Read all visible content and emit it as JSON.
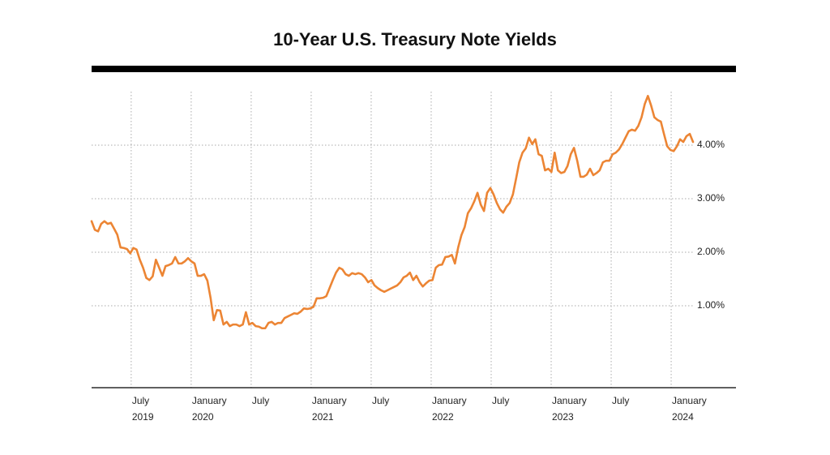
{
  "chart_data": {
    "type": "line",
    "title": "10-Year U.S. Treasury Note Yields",
    "x": [
      2019.17,
      2019.197,
      2019.224,
      2019.25,
      2019.277,
      2019.304,
      2019.331,
      2019.358,
      2019.384,
      2019.411,
      2019.438,
      2019.465,
      2019.492,
      2019.518,
      2019.545,
      2019.572,
      2019.599,
      2019.626,
      2019.652,
      2019.679,
      2019.706,
      2019.733,
      2019.76,
      2019.786,
      2019.813,
      2019.84,
      2019.867,
      2019.894,
      2019.92,
      2019.947,
      2019.974,
      2020.001,
      2020.028,
      2020.054,
      2020.081,
      2020.108,
      2020.135,
      2020.162,
      2020.188,
      2020.215,
      2020.242,
      2020.269,
      2020.296,
      2020.322,
      2020.349,
      2020.376,
      2020.403,
      2020.43,
      2020.456,
      2020.483,
      2020.51,
      2020.537,
      2020.564,
      2020.59,
      2020.617,
      2020.644,
      2020.671,
      2020.698,
      2020.724,
      2020.751,
      2020.778,
      2020.805,
      2020.832,
      2020.858,
      2020.885,
      2020.912,
      2020.939,
      2020.966,
      2020.992,
      2021.019,
      2021.046,
      2021.073,
      2021.1,
      2021.126,
      2021.153,
      2021.18,
      2021.207,
      2021.234,
      2021.26,
      2021.287,
      2021.314,
      2021.341,
      2021.368,
      2021.394,
      2021.421,
      2021.448,
      2021.475,
      2021.502,
      2021.528,
      2021.555,
      2021.582,
      2021.609,
      2021.636,
      2021.662,
      2021.689,
      2021.716,
      2021.743,
      2021.77,
      2021.796,
      2021.823,
      2021.85,
      2021.877,
      2021.904,
      2021.93,
      2021.957,
      2021.984,
      2022.011,
      2022.038,
      2022.064,
      2022.091,
      2022.118,
      2022.145,
      2022.172,
      2022.198,
      2022.225,
      2022.252,
      2022.279,
      2022.306,
      2022.332,
      2022.359,
      2022.386,
      2022.413,
      2022.44,
      2022.466,
      2022.493,
      2022.52,
      2022.547,
      2022.574,
      2022.6,
      2022.627,
      2022.654,
      2022.681,
      2022.708,
      2022.734,
      2022.761,
      2022.788,
      2022.815,
      2022.842,
      2022.868,
      2022.895,
      2022.922,
      2022.949,
      2022.976,
      2023.002,
      2023.029,
      2023.056,
      2023.083,
      2023.11,
      2023.136,
      2023.163,
      2023.19,
      2023.217,
      2023.244,
      2023.27,
      2023.297,
      2023.324,
      2023.351,
      2023.378,
      2023.404,
      2023.431,
      2023.458,
      2023.485,
      2023.512,
      2023.538,
      2023.565,
      2023.592,
      2023.619,
      2023.646,
      2023.672,
      2023.699,
      2023.726,
      2023.753,
      2023.78,
      2023.806,
      2023.833,
      2023.86,
      2023.887,
      2023.914,
      2023.94,
      2023.967,
      2023.994,
      2024.021,
      2024.048,
      2024.074,
      2024.101,
      2024.128,
      2024.155,
      2024.182
    ],
    "series": [
      {
        "color": "#ec8534",
        "values": [
          2.58,
          2.42,
          2.39,
          2.53,
          2.58,
          2.53,
          2.55,
          2.44,
          2.33,
          2.09,
          2.08,
          2.06,
          1.98,
          2.08,
          2.05,
          1.86,
          1.71,
          1.52,
          1.48,
          1.55,
          1.86,
          1.71,
          1.56,
          1.74,
          1.76,
          1.79,
          1.91,
          1.79,
          1.79,
          1.83,
          1.89,
          1.83,
          1.79,
          1.56,
          1.56,
          1.59,
          1.47,
          1.14,
          0.73,
          0.92,
          0.91,
          0.65,
          0.7,
          0.62,
          0.65,
          0.65,
          0.62,
          0.65,
          0.88,
          0.65,
          0.68,
          0.62,
          0.61,
          0.58,
          0.58,
          0.68,
          0.7,
          0.65,
          0.68,
          0.68,
          0.77,
          0.8,
          0.83,
          0.86,
          0.85,
          0.89,
          0.95,
          0.94,
          0.95,
          0.98,
          1.14,
          1.14,
          1.15,
          1.18,
          1.33,
          1.48,
          1.62,
          1.71,
          1.68,
          1.59,
          1.56,
          1.61,
          1.59,
          1.61,
          1.59,
          1.53,
          1.44,
          1.48,
          1.38,
          1.33,
          1.29,
          1.26,
          1.29,
          1.32,
          1.35,
          1.38,
          1.44,
          1.53,
          1.56,
          1.62,
          1.48,
          1.56,
          1.44,
          1.36,
          1.42,
          1.47,
          1.48,
          1.71,
          1.76,
          1.77,
          1.91,
          1.92,
          1.95,
          1.79,
          2.09,
          2.32,
          2.47,
          2.73,
          2.82,
          2.95,
          3.11,
          2.89,
          2.77,
          3.11,
          3.2,
          3.08,
          2.92,
          2.8,
          2.74,
          2.85,
          2.92,
          3.08,
          3.38,
          3.68,
          3.86,
          3.94,
          4.14,
          4.02,
          4.11,
          3.83,
          3.8,
          3.53,
          3.56,
          3.5,
          3.86,
          3.53,
          3.48,
          3.5,
          3.61,
          3.83,
          3.95,
          3.71,
          3.41,
          3.41,
          3.45,
          3.56,
          3.44,
          3.48,
          3.53,
          3.68,
          3.71,
          3.71,
          3.83,
          3.86,
          3.92,
          4.02,
          4.14,
          4.26,
          4.29,
          4.27,
          4.36,
          4.52,
          4.77,
          4.92,
          4.74,
          4.52,
          4.47,
          4.44,
          4.21,
          3.98,
          3.91,
          3.89,
          3.98,
          4.11,
          4.06,
          4.17,
          4.21,
          4.06
        ]
      }
    ],
    "xlim": [
      2019.17,
      2024.54
    ],
    "ylim": [
      -0.53,
      5.0
    ],
    "xticks": [
      {
        "value": 2019.5,
        "label": "July"
      },
      {
        "value": 2020,
        "label": "January"
      },
      {
        "value": 2020.5,
        "label": "July"
      },
      {
        "value": 2021,
        "label": "January"
      },
      {
        "value": 2021.5,
        "label": "July"
      },
      {
        "value": 2022,
        "label": "January"
      },
      {
        "value": 2022.5,
        "label": "July"
      },
      {
        "value": 2023,
        "label": "January"
      },
      {
        "value": 2023.5,
        "label": "July"
      },
      {
        "value": 2024,
        "label": "January"
      }
    ],
    "xtick_years": [
      {
        "value": 2019.5,
        "label": "2019"
      },
      {
        "value": 2020,
        "label": "2020"
      },
      {
        "value": 2021,
        "label": "2021"
      },
      {
        "value": 2022,
        "label": "2022"
      },
      {
        "value": 2023,
        "label": "2023"
      },
      {
        "value": 2024,
        "label": "2024"
      }
    ],
    "yticks": [
      {
        "value": 1,
        "label": "1.00%"
      },
      {
        "value": 2,
        "label": "2.00%"
      },
      {
        "value": 3,
        "label": "3.00%"
      },
      {
        "value": 4,
        "label": "4.00%"
      }
    ],
    "grid": true
  }
}
